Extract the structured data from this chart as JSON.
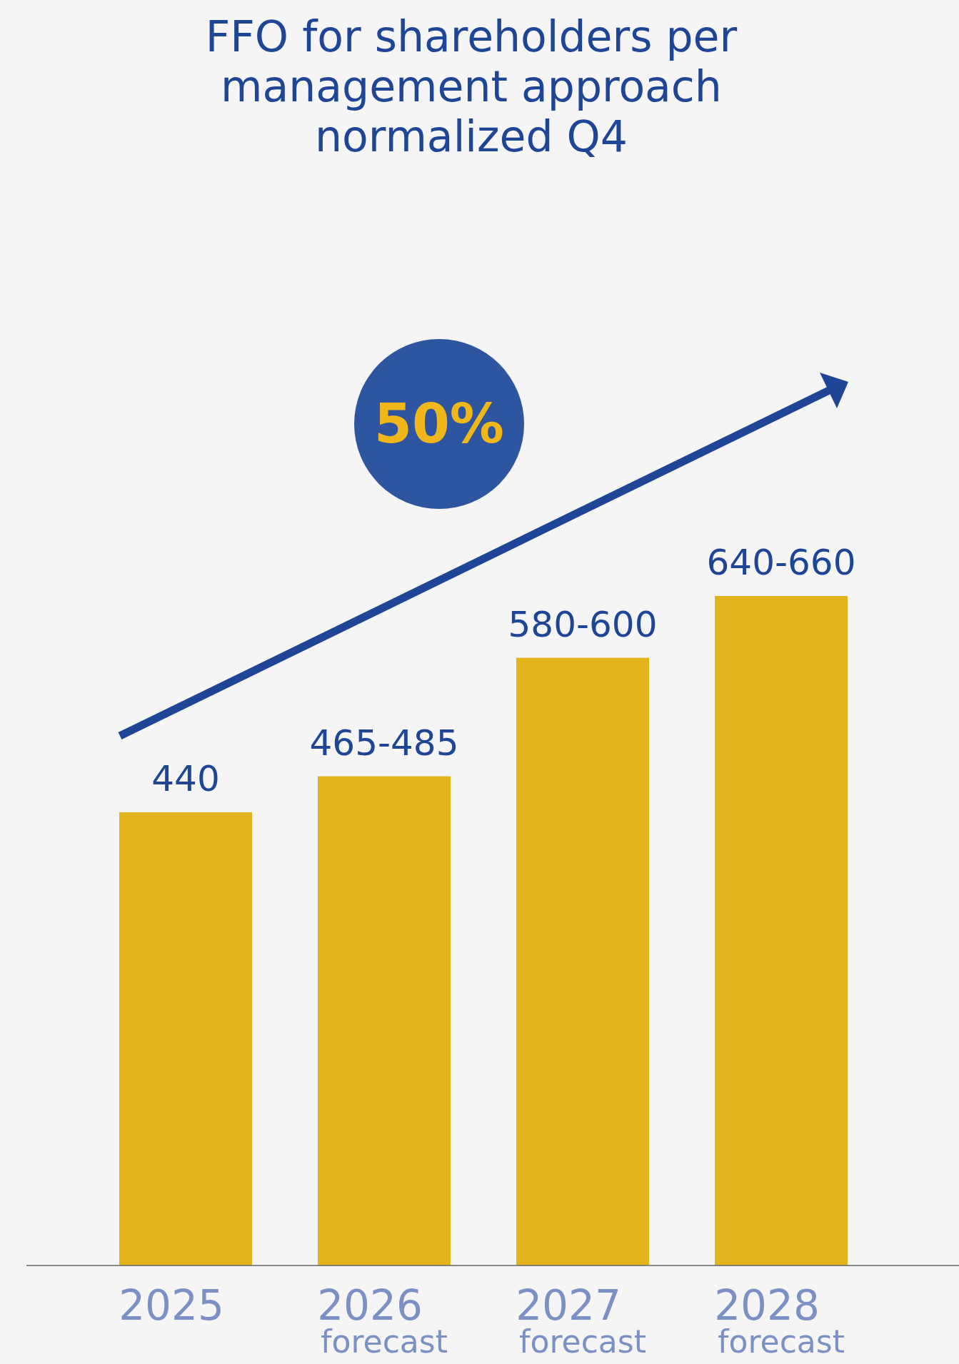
{
  "chart_data": {
    "type": "bar",
    "title": "FFO for shareholders per management approach normalized Q4",
    "categories": [
      "2025",
      "2026 forecast",
      "2027 forecast",
      "2028 forecast"
    ],
    "values": [
      440,
      475,
      590,
      650
    ],
    "value_labels": [
      "440",
      "465-485",
      "580-600",
      "640-660"
    ],
    "color": "#e3b31b",
    "tick_labels": "x",
    "annotations": [
      "50%"
    ]
  }
}
